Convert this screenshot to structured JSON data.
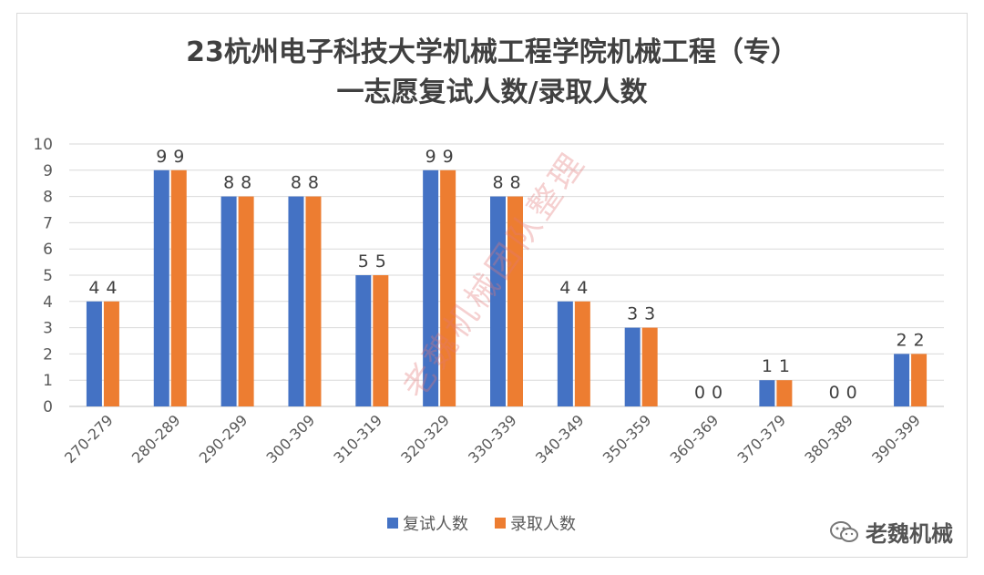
{
  "chart_data": {
    "type": "bar",
    "title_line1": "23杭州电子科技大学机械工程学院机械工程（专）",
    "title_line2": "一志愿复试人数/录取人数",
    "categories": [
      "270-279",
      "280-289",
      "290-299",
      "300-309",
      "310-319",
      "320-329",
      "330-339",
      "340-349",
      "350-359",
      "360-369",
      "370-379",
      "380-389",
      "390-399"
    ],
    "series": [
      {
        "name": "复试人数",
        "color": "#4472c4",
        "values": [
          4,
          9,
          8,
          8,
          5,
          9,
          8,
          4,
          3,
          0,
          1,
          0,
          2
        ]
      },
      {
        "name": "录取人数",
        "color": "#ed7d31",
        "values": [
          4,
          9,
          8,
          8,
          5,
          9,
          8,
          4,
          3,
          0,
          1,
          0,
          2
        ]
      }
    ],
    "ylim": [
      0,
      10
    ],
    "yticks": [
      0,
      1,
      2,
      3,
      4,
      5,
      6,
      7,
      8,
      9,
      10
    ],
    "grid": true,
    "legend": "bottom"
  },
  "watermark": "老魏机械团队整理",
  "badge": {
    "icon": "wechat-icon",
    "text": "老魏机械"
  }
}
